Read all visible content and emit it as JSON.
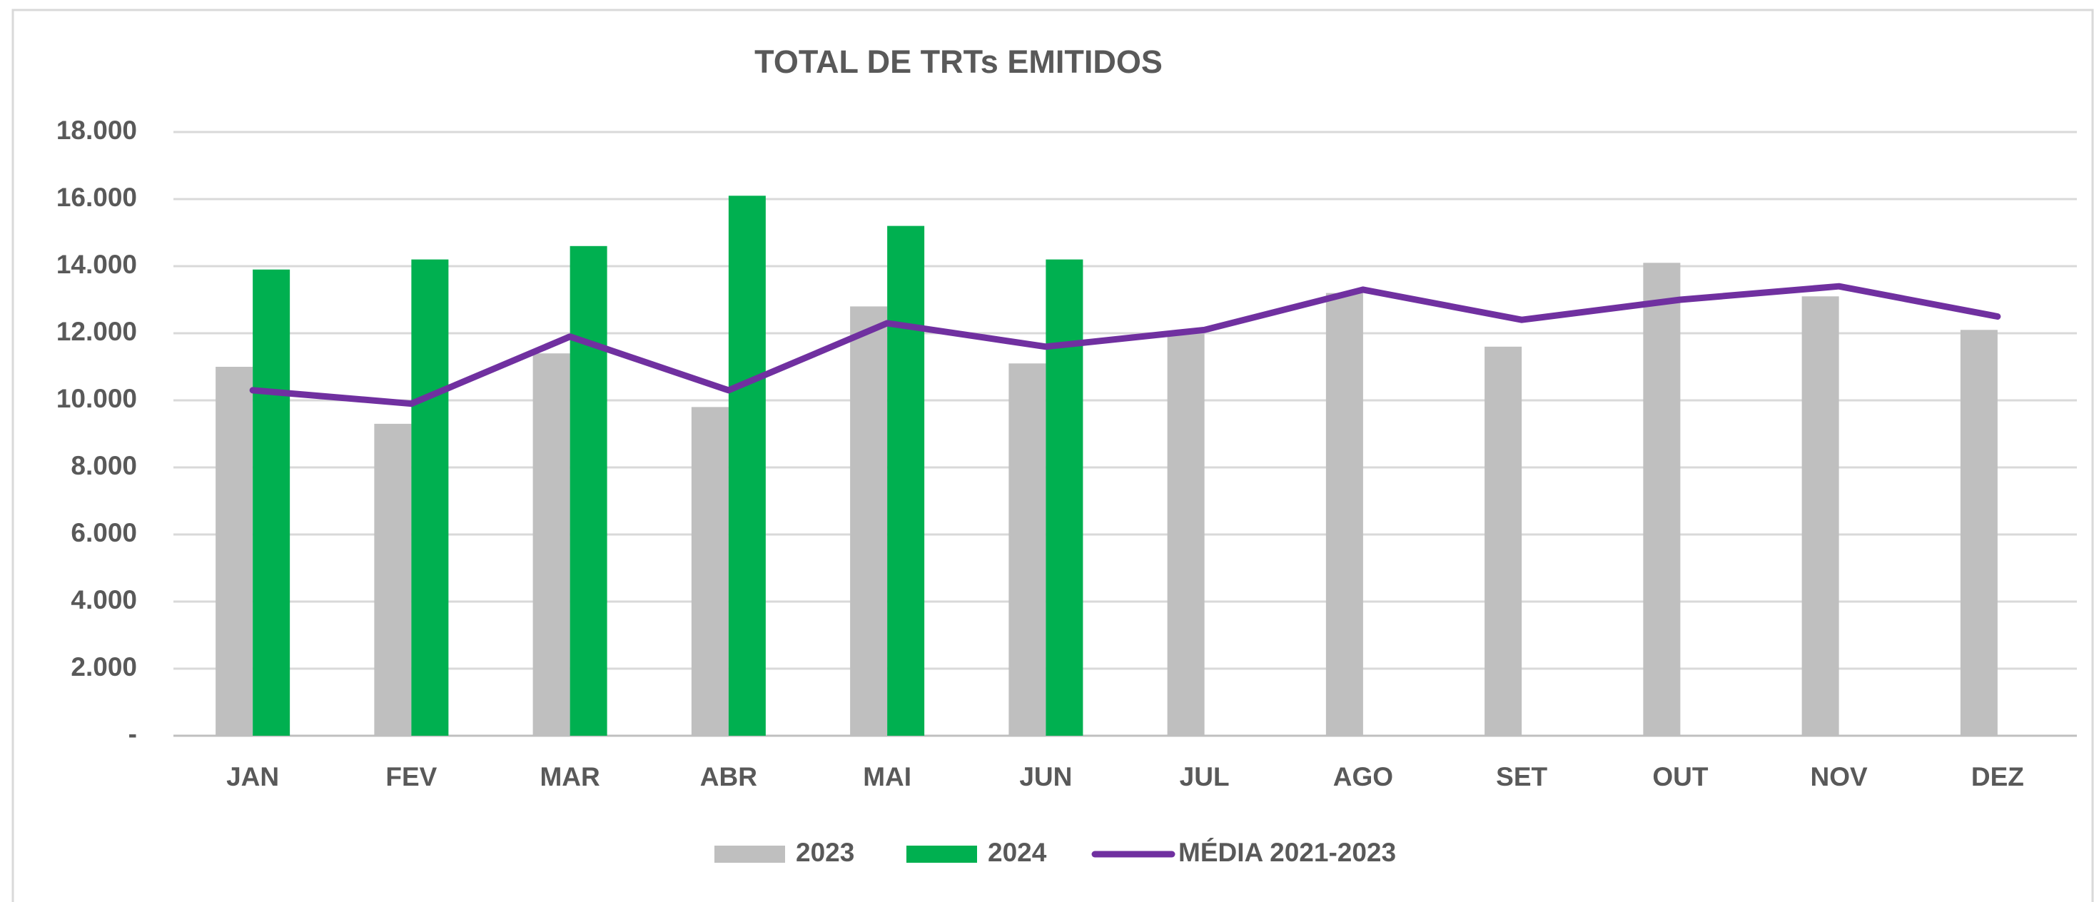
{
  "chart_data": {
    "type": "bar",
    "title": "TOTAL DE TRTs EMITIDOS",
    "categories": [
      "JAN",
      "FEV",
      "MAR",
      "ABR",
      "MAI",
      "JUN",
      "JUL",
      "AGO",
      "SET",
      "OUT",
      "NOV",
      "DEZ"
    ],
    "series": [
      {
        "name": "2023",
        "color": "#bfbfbf",
        "type": "bar",
        "values": [
          11000,
          9300,
          11400,
          9800,
          12800,
          11100,
          12000,
          13200,
          11600,
          14100,
          13100,
          12100
        ]
      },
      {
        "name": "2024",
        "color": "#00b050",
        "type": "bar",
        "values": [
          13900,
          14200,
          14600,
          16100,
          15200,
          14200,
          null,
          null,
          null,
          null,
          null,
          null
        ]
      },
      {
        "name": "MÉDIA 2021-2023",
        "color": "#7030a0",
        "type": "line",
        "values": [
          10300,
          9900,
          11900,
          10300,
          12300,
          11600,
          12100,
          13300,
          12400,
          13000,
          13400,
          12500
        ]
      }
    ],
    "ylim": [
      0,
      18000
    ],
    "yticks": [
      {
        "value": 0,
        "label": "-"
      },
      {
        "value": 2000,
        "label": "2.000"
      },
      {
        "value": 4000,
        "label": "4.000"
      },
      {
        "value": 6000,
        "label": "6.000"
      },
      {
        "value": 8000,
        "label": "8.000"
      },
      {
        "value": 10000,
        "label": "10.000"
      },
      {
        "value": 12000,
        "label": "12.000"
      },
      {
        "value": 14000,
        "label": "14.000"
      },
      {
        "value": 16000,
        "label": "16.000"
      },
      {
        "value": 18000,
        "label": "18.000"
      }
    ],
    "grid": true,
    "legend": "bottom"
  }
}
